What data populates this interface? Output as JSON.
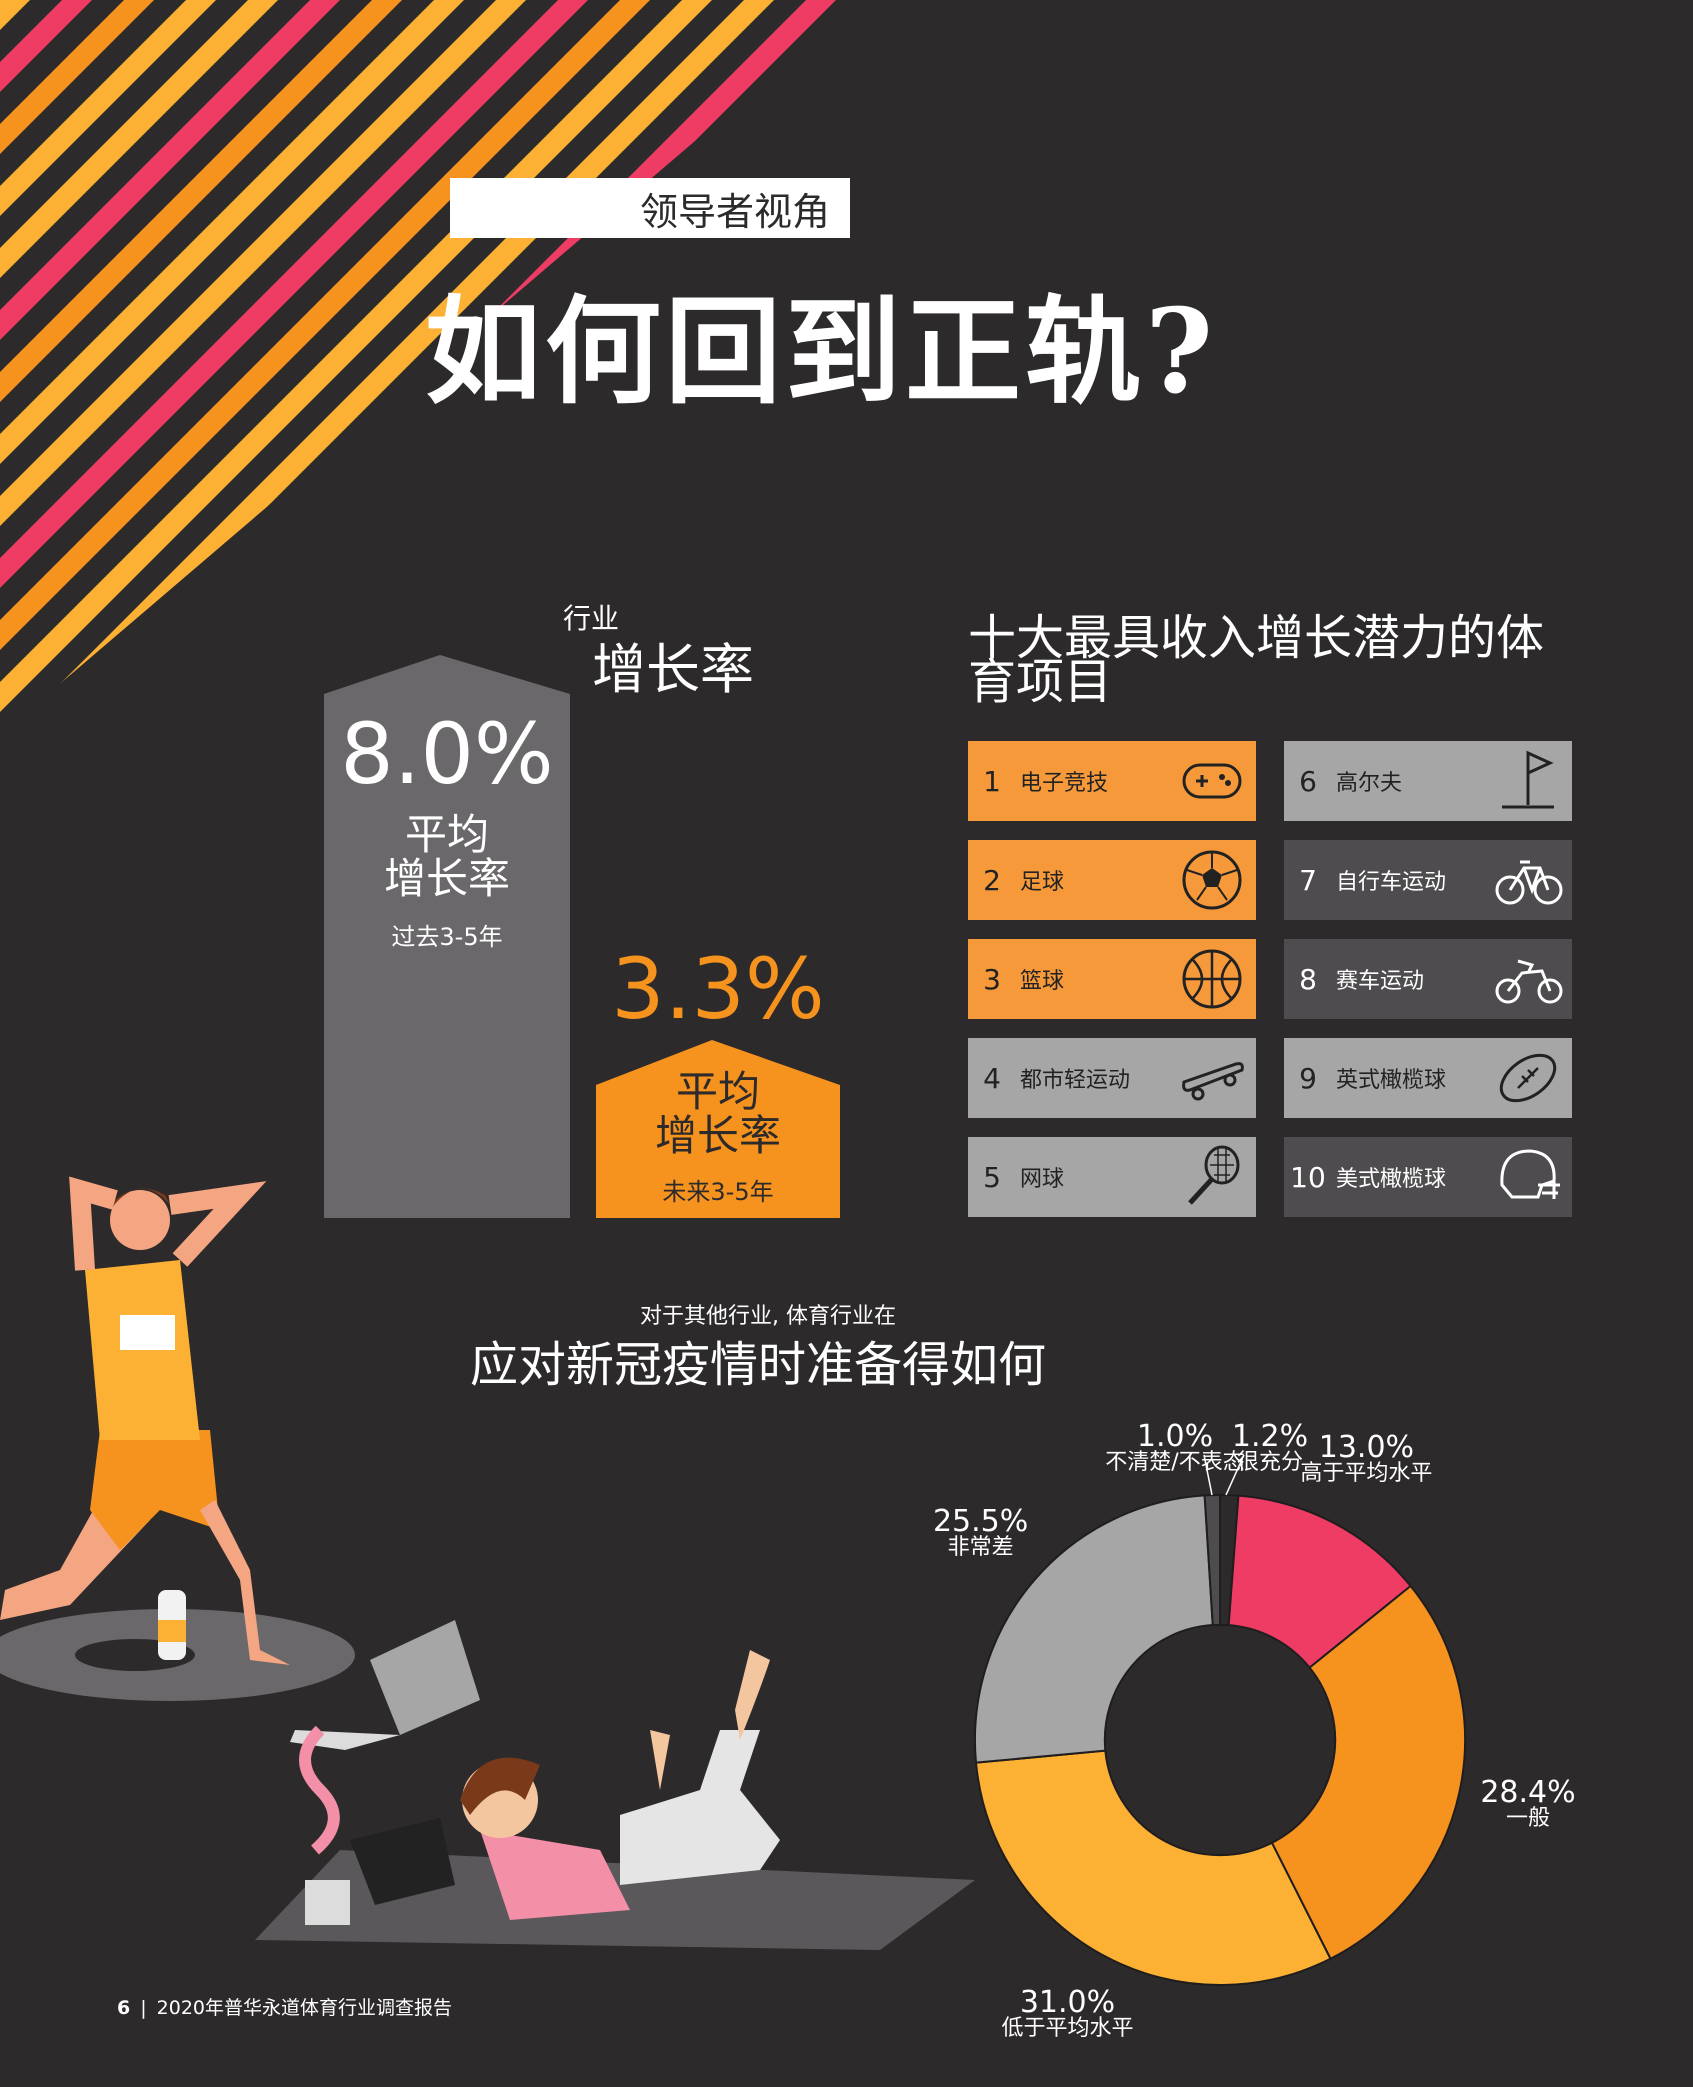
{
  "header": {
    "kicker": "领导者视角",
    "title": "如何回到正轨?"
  },
  "growth": {
    "pre": "行业",
    "main": "增长率",
    "past": {
      "value": "8.0%",
      "label_line1": "平均",
      "label_line2": "增长率",
      "period": "过去3-5年"
    },
    "future": {
      "value": "3.3%",
      "label_line1": "平均",
      "label_line2": "增长率",
      "period": "未来3-5年"
    }
  },
  "sports": {
    "title": "十大最具收入增长潜力的体育项目",
    "items": [
      {
        "num": "1",
        "name": "电子竞技",
        "icon": "gamepad-icon"
      },
      {
        "num": "2",
        "name": "足球",
        "icon": "soccer-ball-icon"
      },
      {
        "num": "3",
        "name": "篮球",
        "icon": "basketball-icon"
      },
      {
        "num": "4",
        "name": "都市轻运动",
        "icon": "skateboard-icon"
      },
      {
        "num": "5",
        "name": "网球",
        "icon": "tennis-racket-icon"
      },
      {
        "num": "6",
        "name": "高尔夫",
        "icon": "golf-flag-icon"
      },
      {
        "num": "7",
        "name": "自行车运动",
        "icon": "bicycle-icon"
      },
      {
        "num": "8",
        "name": "赛车运动",
        "icon": "motorcycle-icon"
      },
      {
        "num": "9",
        "name": "英式橄榄球",
        "icon": "rugby-ball-icon"
      },
      {
        "num": "10",
        "name": "美式橄榄球",
        "icon": "football-helmet-icon"
      }
    ],
    "colors": {
      "orange": "#f5993a",
      "gray": "#a7a6a7",
      "dark": "#4e4c4e"
    }
  },
  "covid": {
    "pre": "对于其他行业, 体育行业在",
    "main": "应对新冠疫情时准备得如何"
  },
  "chart_data": {
    "type": "pie",
    "donut": true,
    "slices": [
      {
        "label": "很充分",
        "pct": "1.2%",
        "value": 1.2,
        "color": "#2d2a2b"
      },
      {
        "label": "高于平均水平",
        "pct": "13.0%",
        "value": 13.0,
        "color": "#ef3c64"
      },
      {
        "label": "一般",
        "pct": "28.4%",
        "value": 28.4,
        "color": "#f6921e"
      },
      {
        "label": "低于平均水平",
        "pct": "31.0%",
        "value": 31.0,
        "color": "#fcb034"
      },
      {
        "label": "非常差",
        "pct": "25.5%",
        "value": 25.5,
        "color": "#a7a6a7"
      },
      {
        "label": "不清楚/不表态",
        "pct": "1.0%",
        "value": 1.0,
        "color": "#4e4c4e"
      }
    ]
  },
  "footer": {
    "page": "6",
    "sep": "|",
    "text": "2020年普华永道体育行业调查报告"
  },
  "theme": {
    "background": "#2d2a2b",
    "pink": "#ef3c64",
    "orange": "#f6921e",
    "yellow": "#fcb034",
    "gray": "#6a686a"
  }
}
